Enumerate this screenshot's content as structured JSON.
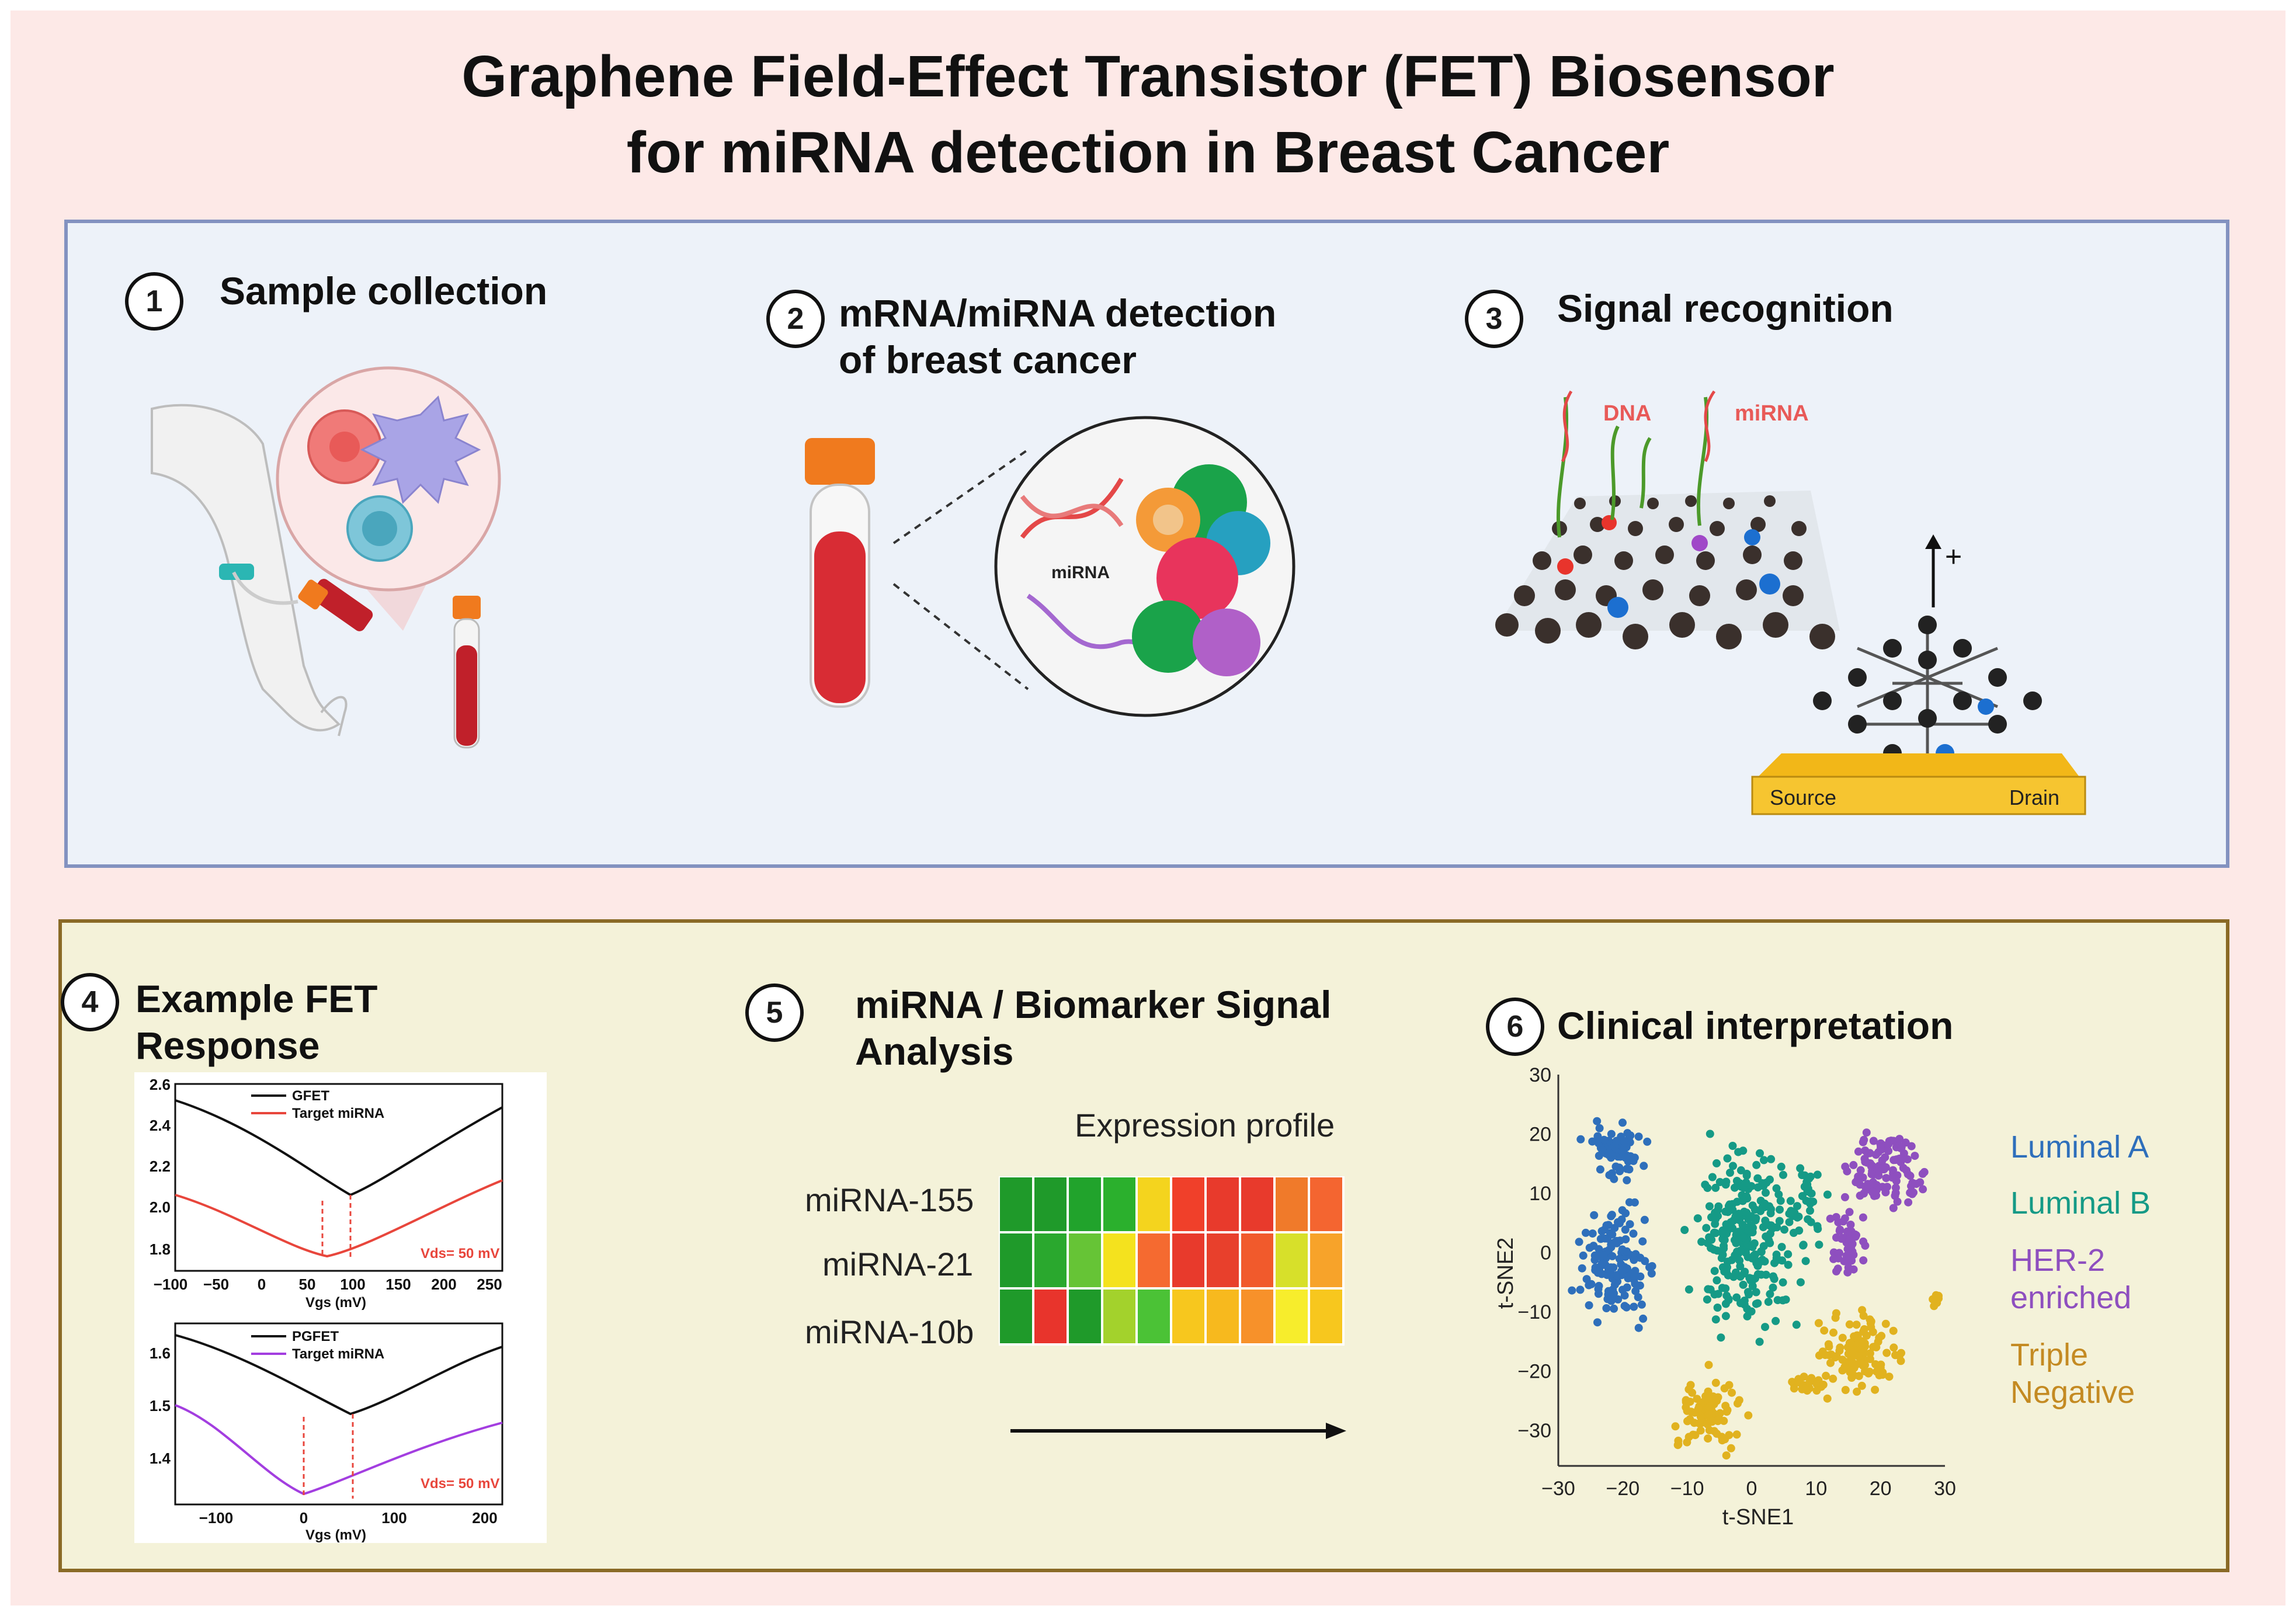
{
  "title": {
    "line1": "Graphene Field-Effect Transistor (FET) Biosensor",
    "line2": "for miRNA detection in Breast Cancer"
  },
  "steps": [
    {
      "num": "1",
      "label": "Sample collection"
    },
    {
      "num": "2",
      "label_line1": "mRNA/miRNA detection",
      "label_line2": "of breast cancer"
    },
    {
      "num": "3",
      "label": "Signal recognition"
    },
    {
      "num": "4",
      "label_line1": "Example FET",
      "label_line2": "Response"
    },
    {
      "num": "5",
      "label_line1": "miRNA / Biomarker Signal",
      "label_line2": "Analysis"
    },
    {
      "num": "6",
      "label": "Clinical interpretation"
    }
  ],
  "panel2": {
    "mirna_label": "miRNA"
  },
  "panel3": {
    "dna_label": "DNA",
    "mirna_label": "miRNA",
    "source": "Source",
    "drain": "Drain",
    "plus": "+"
  },
  "fet_response": {
    "top": {
      "legend": [
        "GFET",
        "Target miRNA"
      ],
      "xticks": [
        "−100",
        "−50",
        "0",
        "50",
        "100",
        "150",
        "200",
        "250"
      ],
      "yticks": [
        "2.6",
        "2.4",
        "2.2",
        "2.0",
        "1.8"
      ],
      "xlabel": "Vgs (mV)",
      "annotation": "Vds= 50 mV",
      "colors": {
        "gfet": "#1a1a1a",
        "target": "#e8463c"
      }
    },
    "bottom": {
      "legend": [
        "PGFET",
        "Target miRNA"
      ],
      "xticks": [
        "−100",
        "0",
        "100",
        "200"
      ],
      "yticks": [
        "1.6",
        "1.5",
        "1.4"
      ],
      "xlabel": "Vgs (mV)",
      "annotation": "Vds= 50 mV",
      "colors": {
        "pgfet": "#1a1a1a",
        "target": "#a33ee0"
      }
    }
  },
  "heatmap": {
    "title": "Expression profile",
    "rows": [
      {
        "label": "miRNA-155",
        "colors": [
          "#1f9a2a",
          "#1f9a2a",
          "#21a32c",
          "#2bb02d",
          "#f4d41e",
          "#f0402a",
          "#e83a2c",
          "#e83a2c",
          "#f07a2a",
          "#f46530"
        ]
      },
      {
        "label": "miRNA-21",
        "colors": [
          "#1f9a2a",
          "#2aa82e",
          "#66c436",
          "#f4e21e",
          "#f56a30",
          "#e83a2c",
          "#e8402c",
          "#f15a2c",
          "#d7e02a",
          "#f7a32a"
        ]
      },
      {
        "label": "miRNA-10b",
        "colors": [
          "#1f9a2a",
          "#e8342c",
          "#1f9a2a",
          "#a3d22c",
          "#4bc236",
          "#f7c71e",
          "#f7b91e",
          "#f7912a",
          "#f7ed2c",
          "#f7c71e"
        ]
      }
    ]
  },
  "chart_data": {
    "type": "scatter",
    "title": "",
    "xlabel": "t-SNE1",
    "ylabel": "t-SNE2",
    "xlim": [
      -30,
      30
    ],
    "ylim": [
      -36,
      30
    ],
    "xticks": [
      "−30",
      "−20",
      "−10",
      "0",
      "10",
      "20",
      "30"
    ],
    "yticks": [
      "30",
      "20",
      "10",
      "0",
      "−10",
      "−20",
      "−30"
    ],
    "legend_position": "right",
    "series": [
      {
        "name": "Luminal A",
        "color": "#2e6fbb",
        "clusters": [
          {
            "center": [
              -21,
              17
            ],
            "spread": [
              4.2,
              4.5
            ],
            "count": 60
          },
          {
            "center": [
              -21,
              -2
            ],
            "spread": [
              5.3,
              8.5
            ],
            "count": 130
          }
        ]
      },
      {
        "name": "Luminal B",
        "color": "#159a86",
        "clusters": [
          {
            "center": [
              -1,
              2
            ],
            "spread": [
              7.5,
              14
            ],
            "count": 260
          },
          {
            "center": [
              9,
              8
            ],
            "spread": [
              2.5,
              8
            ],
            "count": 30
          }
        ]
      },
      {
        "name": "HER-2 enriched",
        "color": "#8e4fbf",
        "clusters": [
          {
            "center": [
              21,
              14
            ],
            "spread": [
              5.2,
              7
            ],
            "count": 110
          },
          {
            "center": [
              15,
              1
            ],
            "spread": [
              2.8,
              6
            ],
            "count": 45
          }
        ]
      },
      {
        "name": "Triple Negative",
        "color": "#e1b21f",
        "clusters": [
          {
            "center": [
              -7,
              -27
            ],
            "spread": [
              5,
              5.5
            ],
            "count": 95
          },
          {
            "center": [
              17,
              -17
            ],
            "spread": [
              6,
              6
            ],
            "count": 115
          },
          {
            "center": [
              9,
              -22
            ],
            "spread": [
              3,
              1.5
            ],
            "count": 20
          },
          {
            "center": [
              28,
              -8
            ],
            "spread": [
              1.5,
              1.5
            ],
            "count": 6
          }
        ]
      }
    ],
    "legend_lines": [
      {
        "series": "Luminal A",
        "lines": [
          "Luminal A"
        ]
      },
      {
        "series": "Luminal B",
        "lines": [
          "Luminal B"
        ]
      },
      {
        "series": "HER-2 enriched",
        "lines": [
          "HER-2",
          "enriched"
        ]
      },
      {
        "series": "Triple Negative",
        "lines": [
          "Triple",
          "Negative"
        ]
      }
    ]
  }
}
